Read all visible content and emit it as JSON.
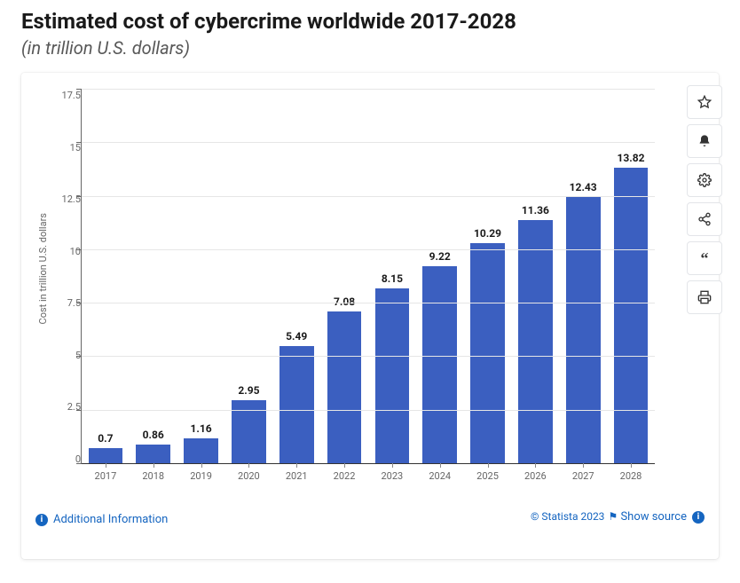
{
  "title": "Estimated cost of cybercrime worldwide 2017-2028",
  "subtitle": "(in trillion U.S. dollars)",
  "chart": {
    "type": "bar",
    "ylabel": "Cost in trillion U.S. dollars",
    "categories": [
      "2017",
      "2018",
      "2019",
      "2020",
      "2021",
      "2022",
      "2023",
      "2024",
      "2025",
      "2026",
      "2027",
      "2028"
    ],
    "values": [
      0.7,
      0.86,
      1.16,
      2.95,
      5.49,
      7.08,
      8.15,
      9.22,
      10.29,
      11.36,
      12.43,
      13.82
    ],
    "bar_color": "#3b5fc0",
    "ylim": [
      0,
      17.5
    ],
    "yticks": [
      0,
      2.5,
      5,
      7.5,
      10,
      12.5,
      15,
      17.5
    ],
    "grid_color": "#e6e6e6",
    "axis_color": "#666666",
    "label_fontsize": 11,
    "value_fontsize": 12,
    "background_color": "#ffffff",
    "bar_width_ratio": 0.72
  },
  "toolbar": {
    "favorite": "favorite",
    "alert": "alert",
    "settings": "settings",
    "share": "share",
    "cite": "cite",
    "print": "print"
  },
  "footer": {
    "additional_info": "Additional Information",
    "copyright": "© Statista 2023",
    "show_source": "Show source"
  }
}
